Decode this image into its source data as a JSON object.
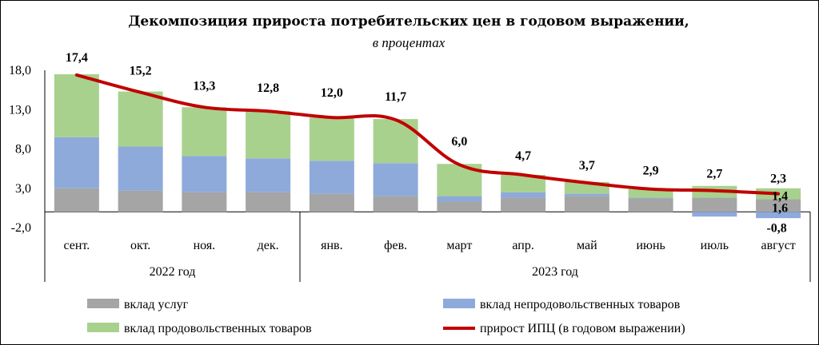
{
  "chart_data": {
    "type": "bar",
    "stacked": true,
    "title": "Декомпозиция прироста потребительских цен в годовом выражении,",
    "subtitle": "в процентах",
    "categories": [
      "сент.",
      "окт.",
      "ноя.",
      "дек.",
      "янв.",
      "фев.",
      "март",
      "апр.",
      "май",
      "июнь",
      "июль",
      "август"
    ],
    "groups": [
      {
        "label": "2022 год",
        "from": 0,
        "to": 3
      },
      {
        "label": "2023 год",
        "from": 4,
        "to": 11
      }
    ],
    "yticks": [
      "18,0",
      "13,0",
      "8,0",
      "3,0",
      "-2,0"
    ],
    "ylim": [
      -2,
      18
    ],
    "series": [
      {
        "name": "вклад услуг",
        "kind": "bar",
        "color": "#a5a5a5",
        "values": [
          3.0,
          2.7,
          2.5,
          2.5,
          2.3,
          2.0,
          1.3,
          1.8,
          2.0,
          1.7,
          1.8,
          1.6
        ]
      },
      {
        "name": "вклад непродовольственных товаров",
        "kind": "bar",
        "color": "#8eaadb",
        "values": [
          6.5,
          5.6,
          4.6,
          4.3,
          4.2,
          4.2,
          0.7,
          0.7,
          0.3,
          0.1,
          -0.6,
          -0.8
        ]
      },
      {
        "name": "вклад продовольственных товаров",
        "kind": "bar",
        "color": "#a9d18e",
        "values": [
          8.0,
          7.0,
          6.2,
          6.0,
          5.5,
          5.6,
          4.1,
          2.2,
          1.5,
          1.1,
          1.5,
          1.4
        ]
      },
      {
        "name": "прирост ИПЦ (в годовом выражении)",
        "kind": "line",
        "color": "#c00000",
        "values": [
          17.4,
          15.2,
          13.3,
          12.8,
          12.0,
          11.7,
          6.0,
          4.7,
          3.7,
          2.9,
          2.7,
          2.3
        ]
      }
    ],
    "line_labels": [
      "17,4",
      "15,2",
      "13,3",
      "12,8",
      "12,0",
      "11,7",
      "6,0",
      "4,7",
      "3,7",
      "2,9",
      "2,7",
      "2,3"
    ],
    "extra_labels": [
      "1,4",
      "1,6",
      "-0,8"
    ],
    "legend_position": "bottom",
    "grid": false
  }
}
